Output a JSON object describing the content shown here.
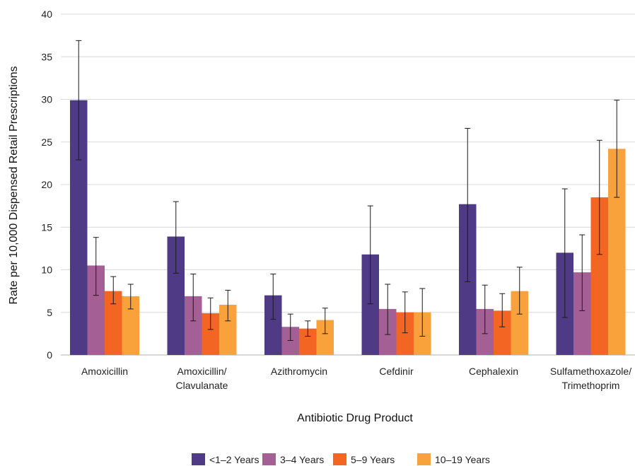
{
  "chart_data": {
    "type": "bar",
    "xlabel": "Antibiotic Drug Product",
    "ylabel": "Rate per 10,000 Dispensed Retail Prescriptions",
    "ylim": [
      0,
      40
    ],
    "yticks": [
      0,
      5,
      10,
      15,
      20,
      25,
      30,
      35,
      40
    ],
    "grid": "horizontal",
    "legend_position": "bottom",
    "categories": [
      [
        "Amoxicillin"
      ],
      [
        "Amoxicillin/",
        "Clavulanate"
      ],
      [
        "Azithromycin"
      ],
      [
        "Cefdinir"
      ],
      [
        "Cephalexin"
      ],
      [
        "Sulfamethoxazole/",
        "Trimethoprim"
      ]
    ],
    "series": [
      {
        "name": "<1–2 Years",
        "color": "#4f3a86",
        "values": [
          29.9,
          13.9,
          7.0,
          11.8,
          17.7,
          12.0
        ],
        "error_low": [
          22.9,
          9.6,
          4.2,
          6.0,
          8.6,
          4.4
        ],
        "error_high": [
          36.9,
          18.0,
          9.5,
          17.5,
          26.6,
          19.5
        ]
      },
      {
        "name": "3–4 Years",
        "color": "#a45f94",
        "values": [
          10.5,
          6.9,
          3.3,
          5.4,
          5.4,
          9.7
        ],
        "error_low": [
          7.0,
          4.0,
          1.7,
          2.4,
          2.5,
          5.2
        ],
        "error_high": [
          13.8,
          9.5,
          4.8,
          8.3,
          8.2,
          14.1
        ]
      },
      {
        "name": "5–9 Years",
        "color": "#f26522",
        "values": [
          7.5,
          4.9,
          3.1,
          5.0,
          5.2,
          18.5
        ],
        "error_low": [
          6.0,
          3.0,
          2.2,
          2.6,
          3.3,
          11.8
        ],
        "error_high": [
          9.2,
          6.7,
          4.0,
          7.4,
          7.2,
          25.2
        ]
      },
      {
        "name": "10–19 Years",
        "color": "#f9a23b",
        "values": [
          6.9,
          5.9,
          4.1,
          5.0,
          7.5,
          24.2
        ],
        "error_low": [
          5.4,
          4.0,
          2.5,
          2.2,
          4.8,
          18.5
        ],
        "error_high": [
          8.3,
          7.6,
          5.5,
          7.8,
          10.3,
          29.9
        ]
      }
    ]
  }
}
